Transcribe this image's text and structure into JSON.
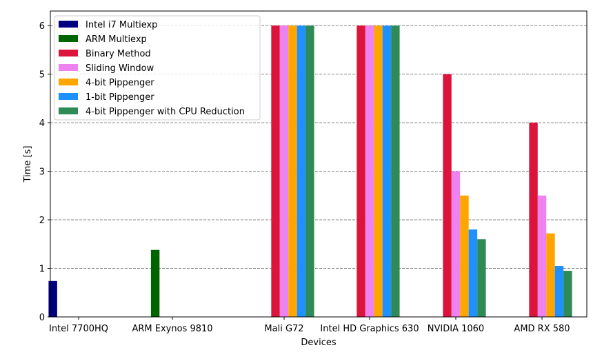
{
  "chart_data": {
    "type": "bar",
    "title": "",
    "xlabel": "Devices",
    "ylabel": "Time [s]",
    "ylim": [
      0,
      6.3
    ],
    "yticks": [
      "0",
      "1",
      "2",
      "3",
      "4",
      "5",
      "6"
    ],
    "grid": "horizontal dashed",
    "legend_position": "top-left",
    "categories": [
      "Intel 7700HQ",
      "ARM Exynos 9810",
      "Mali G72",
      "Intel HD Graphics 630",
      "NVIDIA 1060",
      "AMD RX 580"
    ],
    "series": [
      {
        "name": "Intel i7 Multiexp",
        "color": "#000080",
        "values": [
          0.74,
          null,
          null,
          null,
          null,
          null
        ]
      },
      {
        "name": "ARM Multiexp",
        "color": "#006400",
        "values": [
          null,
          1.38,
          null,
          null,
          null,
          null
        ]
      },
      {
        "name": "Binary Method",
        "color": "#dc143c",
        "values": [
          null,
          null,
          6.0,
          6.0,
          5.0,
          4.0
        ]
      },
      {
        "name": "Sliding Window",
        "color": "#ee82ee",
        "values": [
          null,
          null,
          6.0,
          6.0,
          3.0,
          2.5
        ]
      },
      {
        "name": "4-bit Pippenger",
        "color": "#ffa500",
        "values": [
          null,
          null,
          6.0,
          6.0,
          2.5,
          1.72
        ]
      },
      {
        "name": "1-bit Pippenger",
        "color": "#1e90ff",
        "values": [
          null,
          null,
          6.0,
          6.0,
          1.8,
          1.05
        ]
      },
      {
        "name": "4-bit Pippenger with CPU Reduction",
        "color": "#2e8b57",
        "values": [
          null,
          null,
          6.0,
          6.0,
          1.6,
          0.95
        ]
      }
    ]
  }
}
